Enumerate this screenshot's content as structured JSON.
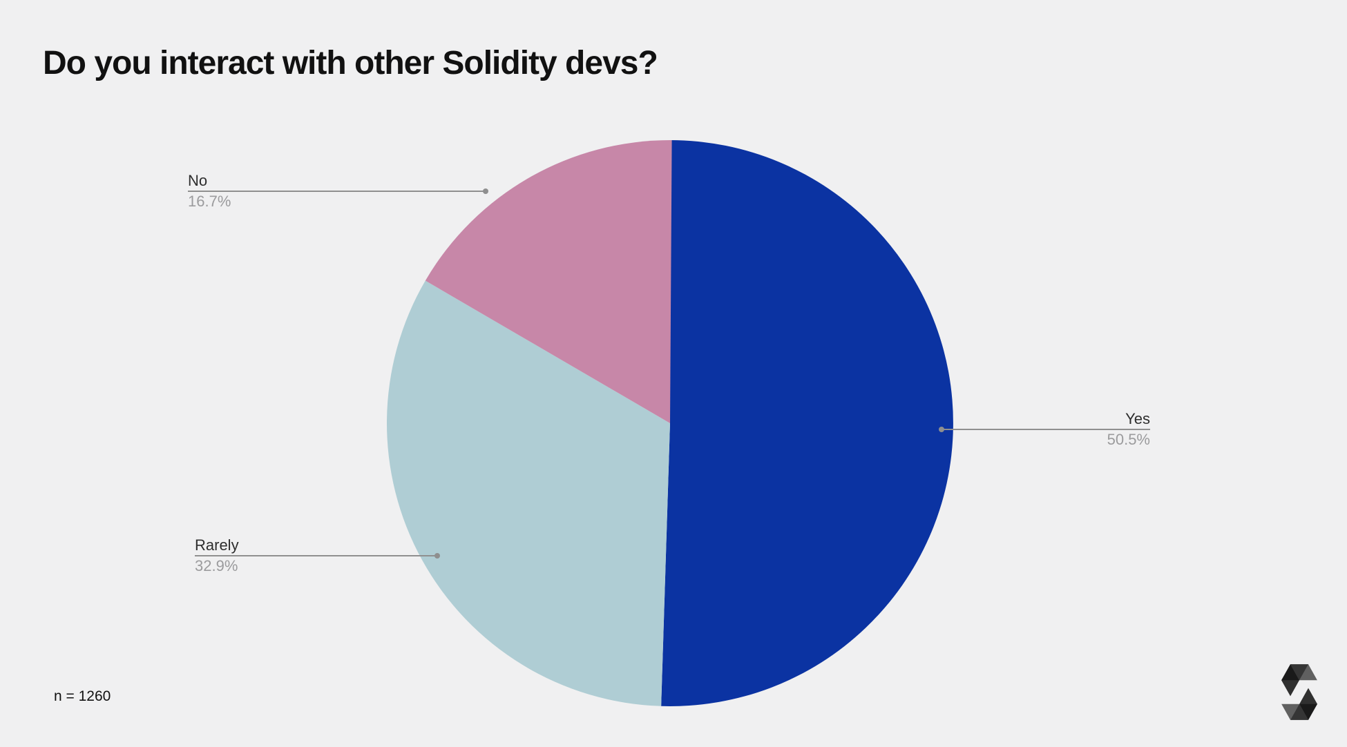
{
  "page": {
    "background_color": "#F0F0F1",
    "title": "Do you interact with other Solidity devs?",
    "sample_size_label": "n = 1260"
  },
  "chart_data": {
    "type": "pie",
    "title": "Do you interact with other Solidity devs?",
    "sample_size": 1260,
    "start_angle_deg": 0,
    "direction": "clockwise",
    "legend_position": "callout-labels",
    "slices": [
      {
        "label": "Yes",
        "value_pct": 50.5,
        "pct_label": "50.5%",
        "color": "#0B33A2"
      },
      {
        "label": "Rarely",
        "value_pct": 32.9,
        "pct_label": "32.9%",
        "color": "#AFCDD4"
      },
      {
        "label": "No",
        "value_pct": 16.7,
        "pct_label": "16.7%",
        "color": "#C787A8"
      }
    ],
    "colors": {
      "slice_label_text": "#2D2D2D",
      "percentage_text": "#9B9B9D",
      "leader_line": "#8F8F8F"
    }
  },
  "branding": {
    "logo_name": "solidity-logo",
    "logo_color": "#000000"
  }
}
